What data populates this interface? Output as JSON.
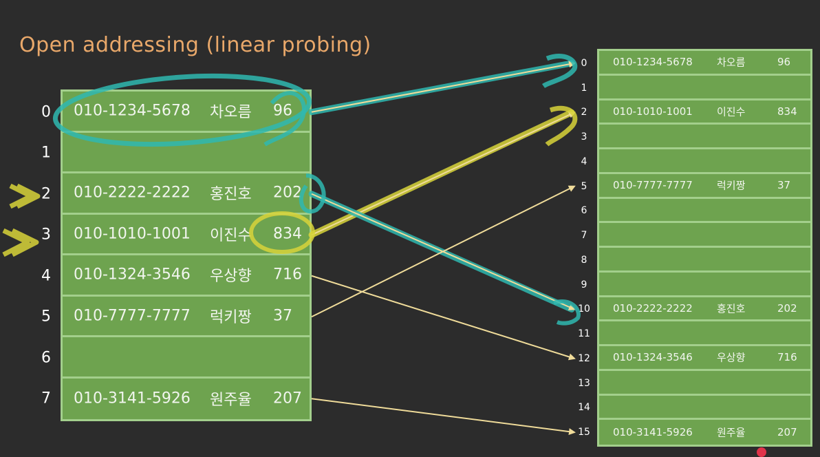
{
  "title": "Open addressing (linear probing)",
  "colors": {
    "background": "#2c2c2c",
    "title": "#e9a86a",
    "cell_fill": "#6ea34f",
    "cell_border": "#a3cf8c",
    "arrow_thin": "#f0dc9a",
    "highlight_teal": "#2fb8b0",
    "highlight_yellow": "#d8d43a"
  },
  "left_table": {
    "indices": [
      "0",
      "1",
      "2",
      "3",
      "4",
      "5",
      "6",
      "7"
    ],
    "rows": [
      {
        "phone": "010-1234-5678",
        "name": "차오름",
        "value": "96"
      },
      {
        "phone": "",
        "name": "",
        "value": ""
      },
      {
        "phone": "010-2222-2222",
        "name": "홍진호",
        "value": "202"
      },
      {
        "phone": "010-1010-1001",
        "name": "이진수",
        "value": "834"
      },
      {
        "phone": "010-1324-3546",
        "name": "우상향",
        "value": "716"
      },
      {
        "phone": "010-7777-7777",
        "name": "럭키짱",
        "value": "37"
      },
      {
        "phone": "",
        "name": "",
        "value": ""
      },
      {
        "phone": "010-3141-5926",
        "name": "원주율",
        "value": "207"
      }
    ]
  },
  "right_table": {
    "indices": [
      "0",
      "1",
      "2",
      "3",
      "4",
      "5",
      "6",
      "7",
      "8",
      "9",
      "10",
      "11",
      "12",
      "13",
      "14",
      "15"
    ],
    "rows": [
      {
        "phone": "010-1234-5678",
        "name": "차오름",
        "value": "96"
      },
      {
        "phone": "",
        "name": "",
        "value": ""
      },
      {
        "phone": "010-1010-1001",
        "name": "이진수",
        "value": "834"
      },
      {
        "phone": "",
        "name": "",
        "value": ""
      },
      {
        "phone": "",
        "name": "",
        "value": ""
      },
      {
        "phone": "010-7777-7777",
        "name": "럭키짱",
        "value": "37"
      },
      {
        "phone": "",
        "name": "",
        "value": ""
      },
      {
        "phone": "",
        "name": "",
        "value": ""
      },
      {
        "phone": "",
        "name": "",
        "value": ""
      },
      {
        "phone": "",
        "name": "",
        "value": ""
      },
      {
        "phone": "010-2222-2222",
        "name": "홍진호",
        "value": "202"
      },
      {
        "phone": "",
        "name": "",
        "value": ""
      },
      {
        "phone": "010-1324-3546",
        "name": "우상향",
        "value": "716"
      },
      {
        "phone": "",
        "name": "",
        "value": ""
      },
      {
        "phone": "",
        "name": "",
        "value": ""
      },
      {
        "phone": "010-3141-5926",
        "name": "원주율",
        "value": "207"
      }
    ]
  },
  "mappings": [
    {
      "from": 0,
      "to": 0,
      "style": "teal"
    },
    {
      "from": 3,
      "to": 2,
      "style": "yellow"
    },
    {
      "from": 2,
      "to": 10,
      "style": "teal"
    },
    {
      "from": 5,
      "to": 5,
      "style": "thin"
    },
    {
      "from": 4,
      "to": 12,
      "style": "thin"
    },
    {
      "from": 7,
      "to": 15,
      "style": "thin"
    }
  ]
}
